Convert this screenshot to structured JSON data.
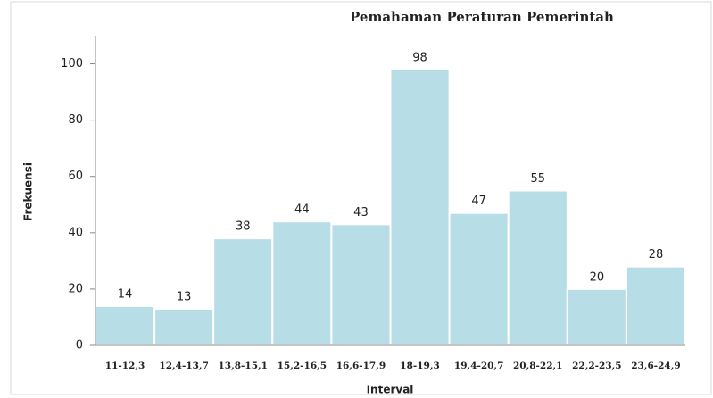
{
  "chart_data": {
    "type": "bar",
    "title": "Pemahaman Peraturan Pemerintah",
    "x_label": "Interval",
    "y_label": "Frekuensi",
    "categories": [
      "11-12,3",
      "12,4-13,7",
      "13,8-15,1",
      "15,2-16,5",
      "16,6-17,9",
      "18-19,3",
      "19,4-20,7",
      "20,8-22,1",
      "22,2-23,5",
      "23,6-24,9"
    ],
    "values": [
      14,
      13,
      38,
      44,
      43,
      98,
      47,
      55,
      20,
      28
    ],
    "color": "#b7dde6",
    "ylim": [
      0,
      110
    ],
    "yticks": [
      0,
      20,
      40,
      60,
      80,
      100
    ],
    "grid": false
  }
}
